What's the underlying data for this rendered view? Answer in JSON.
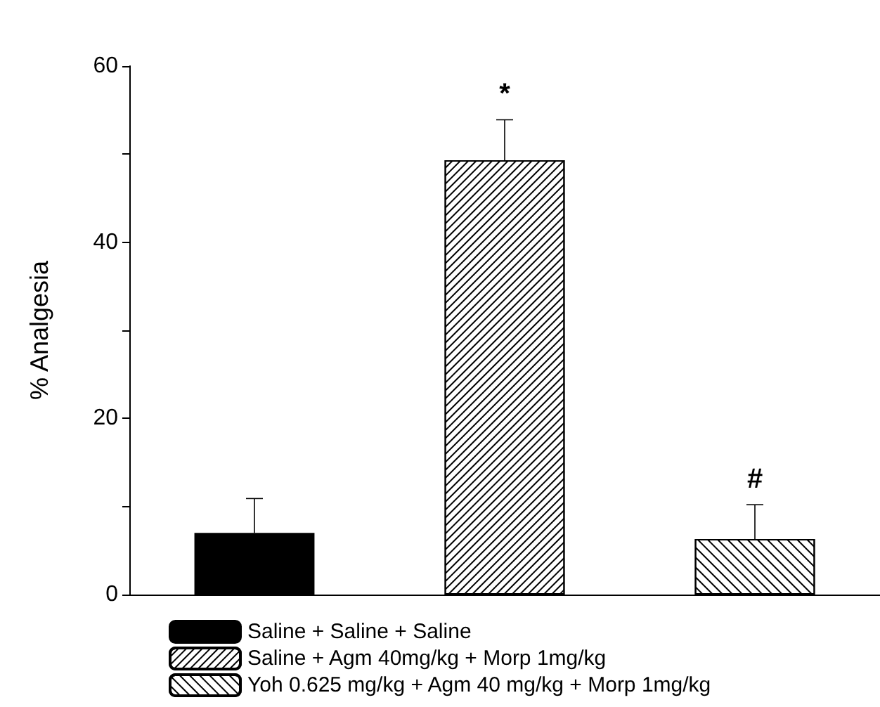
{
  "chart_data": {
    "type": "bar",
    "ylabel": "% Analgesia",
    "categories": [
      null,
      null,
      null
    ],
    "series": [
      {
        "name": "Saline + Saline + Saline",
        "color": "#000000",
        "values": [
          7.0,
          null,
          null
        ],
        "errors": [
          3.9,
          null,
          null
        ]
      },
      {
        "name": "Saline + Agm 40mg/kg + Morp 1mg/kg",
        "color": "#ffffff",
        "values": [
          null,
          49.3,
          null
        ],
        "errors": [
          null,
          4.6,
          null
        ],
        "value_labels": [
          null,
          "*",
          null
        ]
      },
      {
        "name": "Yoh 0.625 mg/kg + Agm 40 mg/kg + Morp 1mg/kg",
        "color": "#ffffff",
        "values": [
          null,
          null,
          6.3
        ],
        "errors": [
          null,
          null,
          3.9
        ],
        "value_labels": [
          null,
          null,
          "#"
        ]
      }
    ],
    "ylim": [
      0,
      60
    ],
    "yticks": [
      0,
      {
        "value": 10,
        "label": null
      },
      20,
      {
        "value": 30,
        "label": null
      },
      40,
      {
        "value": 50,
        "label": null
      },
      60
    ],
    "legend": "bottom left",
    "grid": false
  }
}
